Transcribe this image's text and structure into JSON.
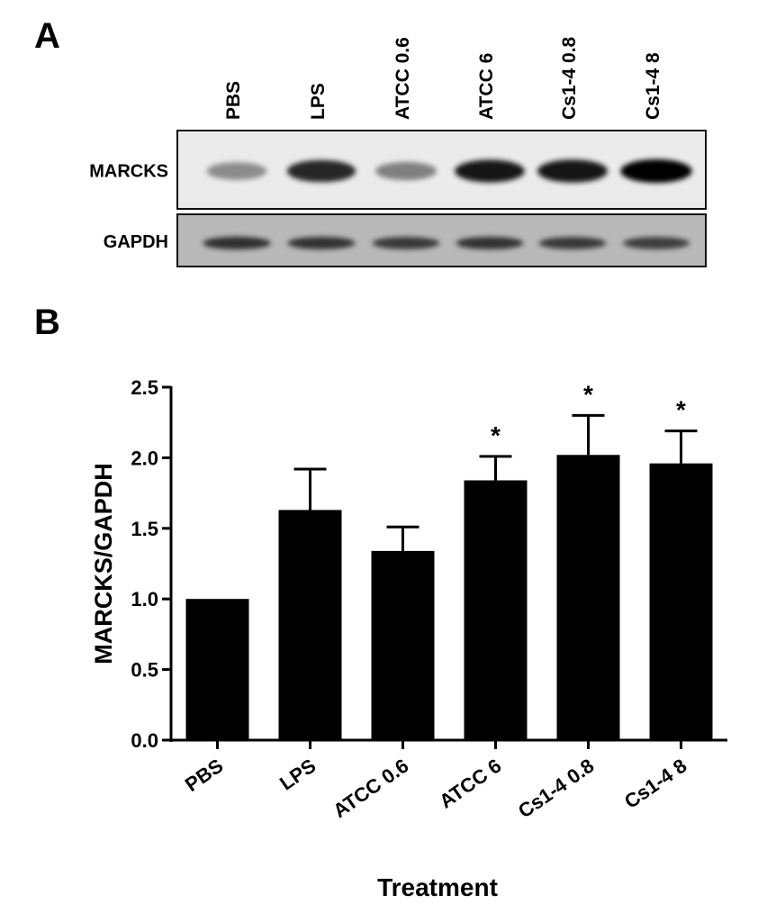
{
  "panels": {
    "a": {
      "letter": "A",
      "lane_labels": [
        "PBS",
        "LPS",
        "ATCC 0.6",
        "ATCC 6",
        "Cs1-4 0.8",
        "Cs1-4 8"
      ],
      "blots": [
        {
          "label": "MARCKS",
          "band_intensity": [
            0.45,
            0.85,
            0.5,
            0.9,
            0.92,
            0.98
          ]
        },
        {
          "label": "GAPDH",
          "band_intensity": [
            0.82,
            0.8,
            0.78,
            0.8,
            0.78,
            0.76
          ]
        }
      ]
    },
    "b": {
      "letter": "B"
    }
  },
  "chart_data": {
    "type": "bar",
    "categories": [
      "PBS",
      "LPS",
      "ATCC 0.6",
      "ATCC 6",
      "Cs1-4 0.8",
      "Cs1-4 8"
    ],
    "values": [
      1.0,
      1.63,
      1.34,
      1.84,
      2.02,
      1.96
    ],
    "error_upper": [
      1.0,
      1.92,
      1.51,
      2.01,
      2.3,
      2.19
    ],
    "significance": [
      "",
      "",
      "",
      "*",
      "*",
      "*"
    ],
    "xlabel": "Treatment",
    "ylabel": "MARCKS/GAPDH",
    "ylim": [
      0,
      2.5
    ],
    "yticks": [
      "0.0",
      "0.5",
      "1.0",
      "1.5",
      "2.0",
      "2.5"
    ],
    "grid": false,
    "bar_color": "#000000"
  }
}
